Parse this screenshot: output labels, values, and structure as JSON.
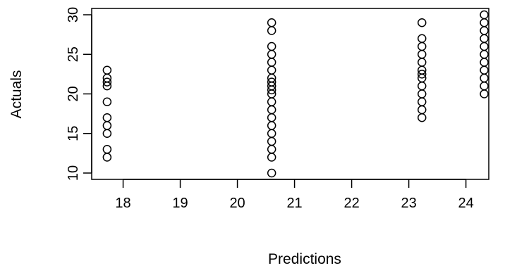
{
  "chart_data": {
    "type": "scatter",
    "title": "",
    "xlabel": "Predictions",
    "ylabel": "Actuals",
    "xlim": [
      17.45,
      24.4
    ],
    "ylim": [
      9.2,
      30.8
    ],
    "xticks": [
      18,
      19,
      20,
      21,
      22,
      23,
      24
    ],
    "yticks": [
      10,
      15,
      20,
      25,
      30
    ],
    "grid": false,
    "legend": "none",
    "marker": "open-circle",
    "point_color": "#000000",
    "series": [
      {
        "x": [
          17.72,
          17.72,
          17.72,
          17.72,
          17.72,
          17.72,
          17.72,
          17.72,
          17.72,
          17.72,
          20.6,
          20.6,
          20.6,
          20.6,
          20.6,
          20.6,
          20.6,
          20.6,
          20.6,
          20.6,
          20.6,
          20.6,
          20.6,
          20.6,
          20.6,
          20.6,
          20.6,
          20.6,
          20.6,
          20.6,
          23.23,
          23.23,
          23.23,
          23.23,
          23.23,
          23.23,
          23.23,
          23.23,
          23.23,
          23.23,
          23.23,
          23.23,
          23.23,
          24.32,
          24.32,
          24.32,
          24.32,
          24.32,
          24.32,
          24.32,
          24.32,
          24.32,
          24.32,
          24.32
        ],
        "y": [
          12,
          13,
          15,
          16,
          17,
          19,
          21,
          22,
          23,
          21.5,
          10,
          12,
          13,
          14,
          15,
          16,
          17,
          18,
          19,
          20,
          21,
          22,
          23,
          24,
          25,
          26,
          28,
          29,
          20.5,
          21.5,
          17,
          18,
          19,
          20,
          21,
          22,
          23,
          24,
          25,
          26,
          27,
          29,
          22.5,
          20,
          21,
          22,
          23,
          24,
          25,
          26,
          27,
          28,
          29,
          30
        ]
      }
    ]
  }
}
